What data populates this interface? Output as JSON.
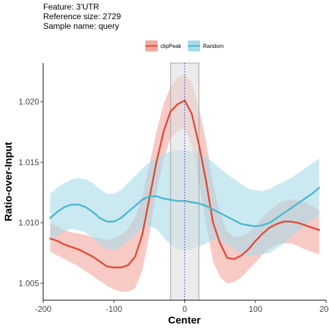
{
  "header": {
    "feature_line": "Feature: 3'UTR",
    "reference_line": "Reference size: 2729",
    "sample_line": "Sample name: query"
  },
  "chart_data": {
    "type": "line",
    "title": "",
    "xlabel": "Center",
    "ylabel": "Ratio-over-Input",
    "xlim": [
      -200,
      200
    ],
    "ylim": [
      1.0036,
      1.0232
    ],
    "xticks": [
      -200,
      -100,
      0,
      100,
      200
    ],
    "xtick_labels": [
      "-200",
      "-100",
      "0",
      "100",
      "200"
    ],
    "yticks": [
      1.005,
      1.01,
      1.015,
      1.02
    ],
    "ytick_labels": [
      "1.005",
      "1.010",
      "1.015",
      "1.020"
    ],
    "grid": false,
    "legend_position": "top",
    "center_region": [
      -20,
      20
    ],
    "center_line_x": 0,
    "x": [
      -190,
      -180,
      -170,
      -160,
      -150,
      -140,
      -130,
      -120,
      -110,
      -100,
      -90,
      -80,
      -70,
      -60,
      -50,
      -40,
      -30,
      -20,
      -10,
      0,
      10,
      20,
      30,
      40,
      50,
      60,
      70,
      80,
      90,
      100,
      110,
      120,
      130,
      140,
      150,
      160,
      170,
      180,
      190
    ],
    "series": [
      {
        "name": "clipPeak",
        "color": "#e34a33",
        "fill": "#f4a6a0",
        "mean": [
          1.0087,
          1.0085,
          1.0082,
          1.008,
          1.0078,
          1.0075,
          1.0072,
          1.0068,
          1.0064,
          1.0063,
          1.0063,
          1.0065,
          1.0072,
          1.009,
          1.012,
          1.015,
          1.0175,
          1.0192,
          1.0198,
          1.0201,
          1.019,
          1.0165,
          1.0135,
          1.01,
          1.0083,
          1.0071,
          1.007,
          1.0073,
          1.0078,
          1.0085,
          1.0091,
          1.0096,
          1.0099,
          1.0101,
          1.0101,
          1.01,
          1.0098,
          1.0096,
          1.0094
        ],
        "upper": [
          1.01,
          1.0097,
          1.0094,
          1.0092,
          1.0091,
          1.009,
          1.0088,
          1.0087,
          1.0086,
          1.0087,
          1.009,
          1.0095,
          1.0105,
          1.0122,
          1.0148,
          1.0175,
          1.0198,
          1.0212,
          1.022,
          1.0223,
          1.0216,
          1.0196,
          1.0168,
          1.0132,
          1.0108,
          1.0093,
          1.0088,
          1.0089,
          1.0092,
          1.0098,
          1.0104,
          1.011,
          1.0115,
          1.0118,
          1.0119,
          1.0119,
          1.0117,
          1.0114,
          1.011
        ],
        "lower": [
          1.0076,
          1.0073,
          1.007,
          1.0067,
          1.0064,
          1.006,
          1.0056,
          1.0052,
          1.0048,
          1.0045,
          1.0043,
          1.0043,
          1.0046,
          1.006,
          1.009,
          1.0125,
          1.0152,
          1.017,
          1.0176,
          1.0178,
          1.0164,
          1.0134,
          1.01,
          1.0068,
          1.0055,
          1.005,
          1.0051,
          1.0055,
          1.0061,
          1.0067,
          1.0074,
          1.0079,
          1.0082,
          1.0083,
          1.0083,
          1.0081,
          1.0078,
          1.0076,
          1.0074
        ]
      },
      {
        "name": "Random",
        "color": "#49b8d2",
        "fill": "#a8dae8",
        "mean": [
          1.0104,
          1.0109,
          1.0113,
          1.0115,
          1.0115,
          1.0113,
          1.0109,
          1.0104,
          1.0101,
          1.0101,
          1.0104,
          1.0109,
          1.0114,
          1.0119,
          1.0122,
          1.0122,
          1.012,
          1.0119,
          1.0118,
          1.0118,
          1.0117,
          1.0116,
          1.0114,
          1.0111,
          1.0108,
          1.0105,
          1.0102,
          1.0099,
          1.0098,
          1.0097,
          1.0098,
          1.01,
          1.0104,
          1.0108,
          1.0112,
          1.0116,
          1.012,
          1.0124,
          1.0129
        ],
        "upper": [
          1.0124,
          1.0129,
          1.0133,
          1.0136,
          1.0137,
          1.0136,
          1.0133,
          1.0128,
          1.0124,
          1.0124,
          1.0127,
          1.0133,
          1.0139,
          1.0145,
          1.015,
          1.0154,
          1.0157,
          1.0159,
          1.016,
          1.016,
          1.0159,
          1.0158,
          1.0155,
          1.015,
          1.0145,
          1.014,
          1.0136,
          1.0132,
          1.0128,
          1.0127,
          1.0126,
          1.0128,
          1.0131,
          1.0134,
          1.0137,
          1.0141,
          1.0145,
          1.0149,
          1.0153
        ],
        "lower": [
          1.0084,
          1.0089,
          1.0093,
          1.0095,
          1.0094,
          1.0092,
          1.0087,
          1.0082,
          1.0078,
          1.0077,
          1.008,
          1.0085,
          1.009,
          1.0095,
          1.0097,
          1.0095,
          1.0088,
          1.0082,
          1.0078,
          1.0077,
          1.0078,
          1.008,
          1.0083,
          1.0086,
          1.0085,
          1.0082,
          1.0078,
          1.0075,
          1.0073,
          1.0073,
          1.0074,
          1.0075,
          1.0079,
          1.0083,
          1.0088,
          1.0093,
          1.0098,
          1.0102,
          1.0106
        ]
      }
    ]
  }
}
